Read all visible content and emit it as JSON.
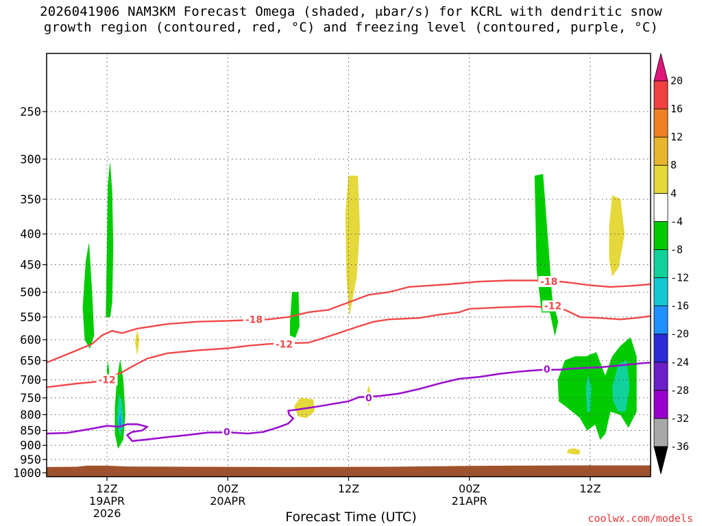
{
  "title_line1": "2026041906 NAM3KM Forecast Omega (shaded, μbar/s) for KCRL with dendritic snow",
  "title_line2": "growth region (contoured, red, °C) and freezing level (contoured, purple, °C)",
  "xlabel": "Forecast Time (UTC)",
  "credit": "coolwx.com/models",
  "chart_data": {
    "type": "time-height cross section",
    "title": "2026041906 NAM3KM Forecast Omega (shaded, μbar/s) for KCRL with dendritic snow growth region (contoured, red, °C) and freezing level (contoured, purple, °C)",
    "xlabel": "Forecast Time (UTC)",
    "ylabel": "",
    "x_range_hours": [
      6,
      66
    ],
    "y_range_hpa": [
      1000,
      200
    ],
    "y_scale": "log-pressure",
    "grid": true,
    "x_ticks": [
      {
        "hour": 12,
        "labels": [
          "12Z",
          "19APR",
          "2026"
        ]
      },
      {
        "hour": 24,
        "labels": [
          "00Z",
          "20APR"
        ]
      },
      {
        "hour": 36,
        "labels": [
          "12Z"
        ]
      },
      {
        "hour": 48,
        "labels": [
          "00Z",
          "21APR"
        ]
      },
      {
        "hour": 60,
        "labels": [
          "12Z"
        ]
      }
    ],
    "y_ticks": [
      250,
      300,
      350,
      400,
      450,
      500,
      550,
      600,
      650,
      700,
      750,
      800,
      850,
      900,
      950,
      1000
    ],
    "colorbar": {
      "levels": [
        -36,
        -32,
        -28,
        -24,
        -20,
        -16,
        -12,
        -8,
        -4,
        4,
        8,
        12,
        16,
        20
      ],
      "colors": [
        "#a8a8a8",
        "#9900cc",
        "#6a1fc9",
        "#2b2bd8",
        "#1e90ff",
        "#14c8d2",
        "#10d29a",
        "#00cc00",
        "#ffffff",
        "#e5d83a",
        "#e8b52e",
        "#f08024",
        "#f04040",
        "#e0157a"
      ],
      "under_color": "#000000",
      "over_color": "#e0157a"
    },
    "omega_regions": [
      {
        "value_class": "-4 to -8",
        "color": "#00cc00",
        "points": [
          [
            9.6,
            530
          ],
          [
            9.9,
            445
          ],
          [
            10.2,
            415
          ],
          [
            10.5,
            500
          ],
          [
            10.7,
            590
          ],
          [
            10.3,
            620
          ],
          [
            9.8,
            600
          ]
        ]
      },
      {
        "value_class": "-4 to -8",
        "color": "#00cc00",
        "points": [
          [
            11.9,
            550
          ],
          [
            12.1,
            330
          ],
          [
            12.3,
            305
          ],
          [
            12.5,
            340
          ],
          [
            12.6,
            420
          ],
          [
            12.5,
            520
          ],
          [
            12.3,
            550
          ]
        ]
      },
      {
        "value_class": "-4 to -8",
        "color": "#00cc00",
        "points": [
          [
            12.8,
            780
          ],
          [
            13.0,
            700
          ],
          [
            13.3,
            650
          ],
          [
            13.6,
            700
          ],
          [
            13.8,
            800
          ],
          [
            13.6,
            880
          ],
          [
            13.1,
            910
          ],
          [
            12.8,
            860
          ]
        ]
      },
      {
        "value_class": "-8 to -12",
        "color": "#10d29a",
        "points": [
          [
            13.0,
            810
          ],
          [
            13.2,
            740
          ],
          [
            13.5,
            760
          ],
          [
            13.6,
            830
          ],
          [
            13.3,
            870
          ]
        ]
      },
      {
        "value_class": "-12 to -16",
        "color": "#14c8d2",
        "points": [
          [
            13.1,
            820
          ],
          [
            13.3,
            775
          ],
          [
            13.5,
            800
          ],
          [
            13.4,
            850
          ],
          [
            13.2,
            850
          ]
        ]
      },
      {
        "value_class": "-16 to -20",
        "color": "#1e90ff",
        "points": [
          [
            13.2,
            825
          ],
          [
            13.3,
            800
          ],
          [
            13.4,
            815
          ],
          [
            13.35,
            845
          ]
        ]
      },
      {
        "value_class": "4 to 8",
        "color": "#e5d83a",
        "points": [
          [
            14.8,
            605
          ],
          [
            15.0,
            580
          ],
          [
            15.2,
            600
          ],
          [
            15.0,
            635
          ]
        ]
      },
      {
        "value_class": "-4 to -8",
        "color": "#00cc00",
        "points": [
          [
            12.0,
            675
          ],
          [
            12.1,
            655
          ],
          [
            12.2,
            680
          ],
          [
            12.1,
            695
          ]
        ]
      },
      {
        "value_class": "-4 to -8",
        "color": "#00cc00",
        "points": [
          [
            30.2,
            560
          ],
          [
            30.4,
            500
          ],
          [
            31.0,
            500
          ],
          [
            31.1,
            570
          ],
          [
            30.7,
            595
          ],
          [
            30.2,
            590
          ]
        ]
      },
      {
        "value_class": "4 to 8",
        "color": "#e5d83a",
        "points": [
          [
            35.7,
            370
          ],
          [
            36.0,
            320
          ],
          [
            36.9,
            320
          ],
          [
            37.1,
            390
          ],
          [
            36.8,
            470
          ],
          [
            36.1,
            545
          ],
          [
            35.8,
            470
          ]
        ]
      },
      {
        "value_class": "4 to 8",
        "color": "#e5d83a",
        "points": [
          [
            30.6,
            775
          ],
          [
            31.2,
            750
          ],
          [
            32.5,
            755
          ],
          [
            32.6,
            790
          ],
          [
            31.8,
            810
          ],
          [
            31.0,
            805
          ]
        ]
      },
      {
        "value_class": "4 to 8",
        "color": "#e5d83a",
        "points": [
          [
            37.8,
            740
          ],
          [
            38.0,
            715
          ],
          [
            38.2,
            740
          ],
          [
            38.0,
            775
          ]
        ]
      },
      {
        "value_class": "-4 to -8",
        "color": "#00cc00",
        "points": [
          [
            54.5,
            320
          ],
          [
            55.3,
            318
          ],
          [
            55.8,
            410
          ],
          [
            56.2,
            510
          ],
          [
            56.8,
            560
          ],
          [
            56.5,
            590
          ],
          [
            56.0,
            540
          ],
          [
            55.2,
            540
          ],
          [
            54.7,
            460
          ]
        ]
      },
      {
        "value_class": "4 to 8",
        "color": "#e5d83a",
        "points": [
          [
            61.9,
            390
          ],
          [
            62.2,
            345
          ],
          [
            63.0,
            350
          ],
          [
            63.4,
            400
          ],
          [
            62.8,
            455
          ],
          [
            62.2,
            470
          ],
          [
            61.9,
            440
          ]
        ]
      },
      {
        "value_class": "-4 to -8",
        "color": "#00cc00",
        "points": [
          [
            56.8,
            700
          ],
          [
            57.5,
            650
          ],
          [
            58.5,
            640
          ],
          [
            59.6,
            640
          ],
          [
            60.6,
            630
          ],
          [
            61.5,
            690
          ],
          [
            62.2,
            640
          ],
          [
            63.0,
            615
          ],
          [
            64.0,
            595
          ],
          [
            64.6,
            640
          ],
          [
            64.6,
            790
          ],
          [
            63.8,
            840
          ],
          [
            63.0,
            800
          ],
          [
            62.0,
            790
          ],
          [
            61.5,
            860
          ],
          [
            61.0,
            880
          ],
          [
            60.5,
            830
          ],
          [
            59.7,
            850
          ],
          [
            59.0,
            810
          ],
          [
            57.8,
            780
          ],
          [
            56.9,
            760
          ]
        ]
      },
      {
        "value_class": "-8 to -12",
        "color": "#10d29a",
        "points": [
          [
            59.6,
            720
          ],
          [
            59.8,
            690
          ],
          [
            60.1,
            720
          ],
          [
            60.0,
            790
          ],
          [
            59.7,
            790
          ]
        ]
      },
      {
        "value_class": "-8 to -12",
        "color": "#10d29a",
        "points": [
          [
            62.2,
            720
          ],
          [
            62.8,
            660
          ],
          [
            63.6,
            650
          ],
          [
            63.9,
            720
          ],
          [
            63.5,
            790
          ],
          [
            62.8,
            790
          ],
          [
            62.3,
            760
          ]
        ]
      },
      {
        "value_class": "4 to 8",
        "color": "#e5d83a",
        "points": [
          [
            57.8,
            915
          ],
          [
            58.4,
            910
          ],
          [
            59.0,
            918
          ],
          [
            58.9,
            932
          ],
          [
            58.2,
            930
          ],
          [
            57.7,
            925
          ]
        ]
      }
    ],
    "red_contours": [
      {
        "label": "-18",
        "label_at": [
          26.6,
          555
        ],
        "points": [
          [
            6,
            655
          ],
          [
            8.5,
            630
          ],
          [
            10.5,
            610
          ],
          [
            11.5,
            590
          ],
          [
            12.5,
            580
          ],
          [
            13.5,
            585
          ],
          [
            15,
            575
          ],
          [
            18,
            565
          ],
          [
            21,
            560
          ],
          [
            24,
            558
          ],
          [
            28,
            555
          ],
          [
            30,
            550
          ],
          [
            32,
            540
          ],
          [
            34,
            535
          ],
          [
            36,
            520
          ],
          [
            38,
            505
          ],
          [
            40,
            500
          ],
          [
            42,
            490
          ],
          [
            46,
            485
          ],
          [
            49,
            480
          ],
          [
            52,
            478
          ],
          [
            56,
            478
          ],
          [
            58,
            482
          ],
          [
            60,
            487
          ],
          [
            62,
            490
          ],
          [
            64,
            488
          ],
          [
            66,
            485
          ]
        ]
      },
      {
        "label": "-12",
        "label_at": [
          29.6,
          610
        ],
        "points": [
          [
            6,
            720
          ],
          [
            9,
            710
          ],
          [
            11,
            705
          ],
          [
            12.5,
            690
          ],
          [
            13.5,
            680
          ],
          [
            14.5,
            665
          ],
          [
            16,
            645
          ],
          [
            18,
            632
          ],
          [
            21,
            625
          ],
          [
            24,
            620
          ],
          [
            26,
            614
          ],
          [
            28,
            610
          ],
          [
            30,
            608
          ],
          [
            32,
            607
          ],
          [
            33,
            600
          ],
          [
            35,
            585
          ],
          [
            37,
            570
          ],
          [
            38.5,
            560
          ],
          [
            40,
            555
          ],
          [
            43,
            552
          ],
          [
            45,
            545
          ],
          [
            47,
            540
          ],
          [
            48,
            533
          ],
          [
            51,
            530
          ],
          [
            54,
            528
          ],
          [
            56,
            530
          ],
          [
            57.5,
            535
          ],
          [
            59,
            550
          ],
          [
            61,
            552
          ],
          [
            63,
            555
          ],
          [
            64.5,
            552
          ],
          [
            66,
            548
          ]
        ]
      }
    ],
    "red_contour_extra_labels": [
      {
        "label": "-18",
        "at": [
          55.9,
          480
        ]
      },
      {
        "label": "-12",
        "at": [
          56.3,
          527
        ]
      },
      {
        "label": "-12",
        "at": [
          12.0,
          700
        ]
      }
    ],
    "freezing_level": {
      "label": "0",
      "label_positions": [
        [
          23.9,
          855
        ],
        [
          38.0,
          750
        ],
        [
          55.7,
          672
        ]
      ],
      "points": [
        [
          6,
          860
        ],
        [
          8,
          858
        ],
        [
          10,
          847
        ],
        [
          12,
          835
        ],
        [
          13.2,
          838
        ],
        [
          14,
          830
        ],
        [
          15,
          830
        ],
        [
          16,
          838
        ],
        [
          15.5,
          850
        ],
        [
          14.5,
          855
        ],
        [
          14,
          865
        ],
        [
          14.5,
          885
        ],
        [
          16,
          880
        ],
        [
          18,
          872
        ],
        [
          20,
          865
        ],
        [
          22,
          857
        ],
        [
          24,
          856
        ],
        [
          26,
          860
        ],
        [
          27.5,
          855
        ],
        [
          29,
          840
        ],
        [
          30,
          828
        ],
        [
          30.5,
          812
        ],
        [
          30.1,
          800
        ],
        [
          30,
          788
        ],
        [
          31,
          784
        ],
        [
          33,
          775
        ],
        [
          36,
          760
        ],
        [
          37,
          748
        ],
        [
          39,
          745
        ],
        [
          41,
          738
        ],
        [
          43,
          725
        ],
        [
          45,
          710
        ],
        [
          47,
          697
        ],
        [
          49,
          692
        ],
        [
          51,
          684
        ],
        [
          53,
          678
        ],
        [
          55,
          674
        ],
        [
          57,
          673
        ],
        [
          59,
          669
        ],
        [
          61,
          667
        ],
        [
          63,
          662
        ],
        [
          65,
          657
        ],
        [
          66,
          655
        ]
      ]
    }
  }
}
